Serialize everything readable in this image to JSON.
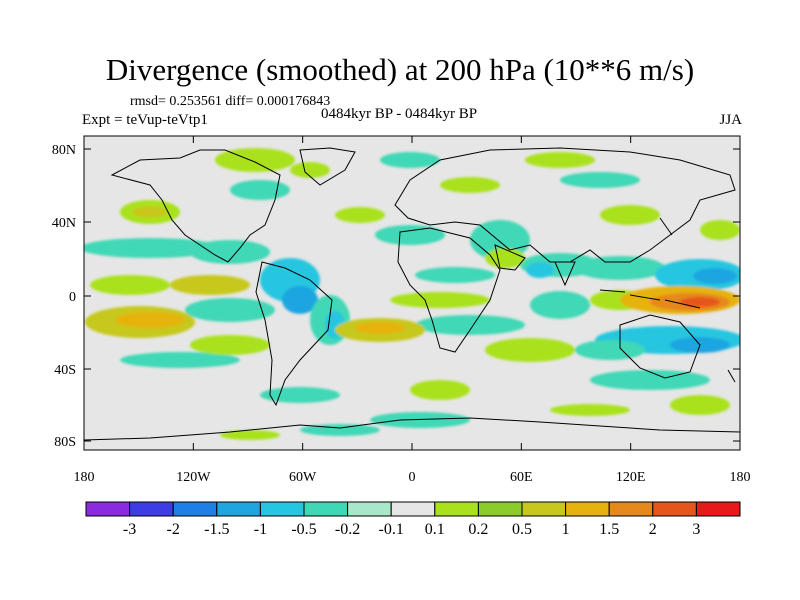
{
  "title": "Divergence (smoothed) at 200 hPa (10**6 m/s)",
  "stats": "rmsd= 0.253561 diff= 0.000176843",
  "period": "0484kyr BP - 0484kyr BP",
  "expt": "Expt = teVup-teVtp1",
  "season": "JJA",
  "lat_labels": [
    "80N",
    "40N",
    "0",
    "40S",
    "80S"
  ],
  "lon_labels": [
    "180",
    "120W",
    "60W",
    "0",
    "60E",
    "120E",
    "180"
  ],
  "colorbar": {
    "colors": [
      "#8a2be2",
      "#3d3de6",
      "#1e7fe6",
      "#1fa5e0",
      "#25c6e0",
      "#3fd8b6",
      "#a8e8c8",
      "#e6e6e6",
      "#a9e21d",
      "#8ccc2a",
      "#c7c81c",
      "#e6b30e",
      "#e6881a",
      "#e6561a",
      "#e61a1a"
    ],
    "labels": [
      "-3",
      "-2",
      "-1.5",
      "-1",
      "-0.5",
      "-0.2",
      "-0.1",
      "0.1",
      "0.2",
      "0.5",
      "1",
      "1.5",
      "2",
      "3"
    ]
  }
}
